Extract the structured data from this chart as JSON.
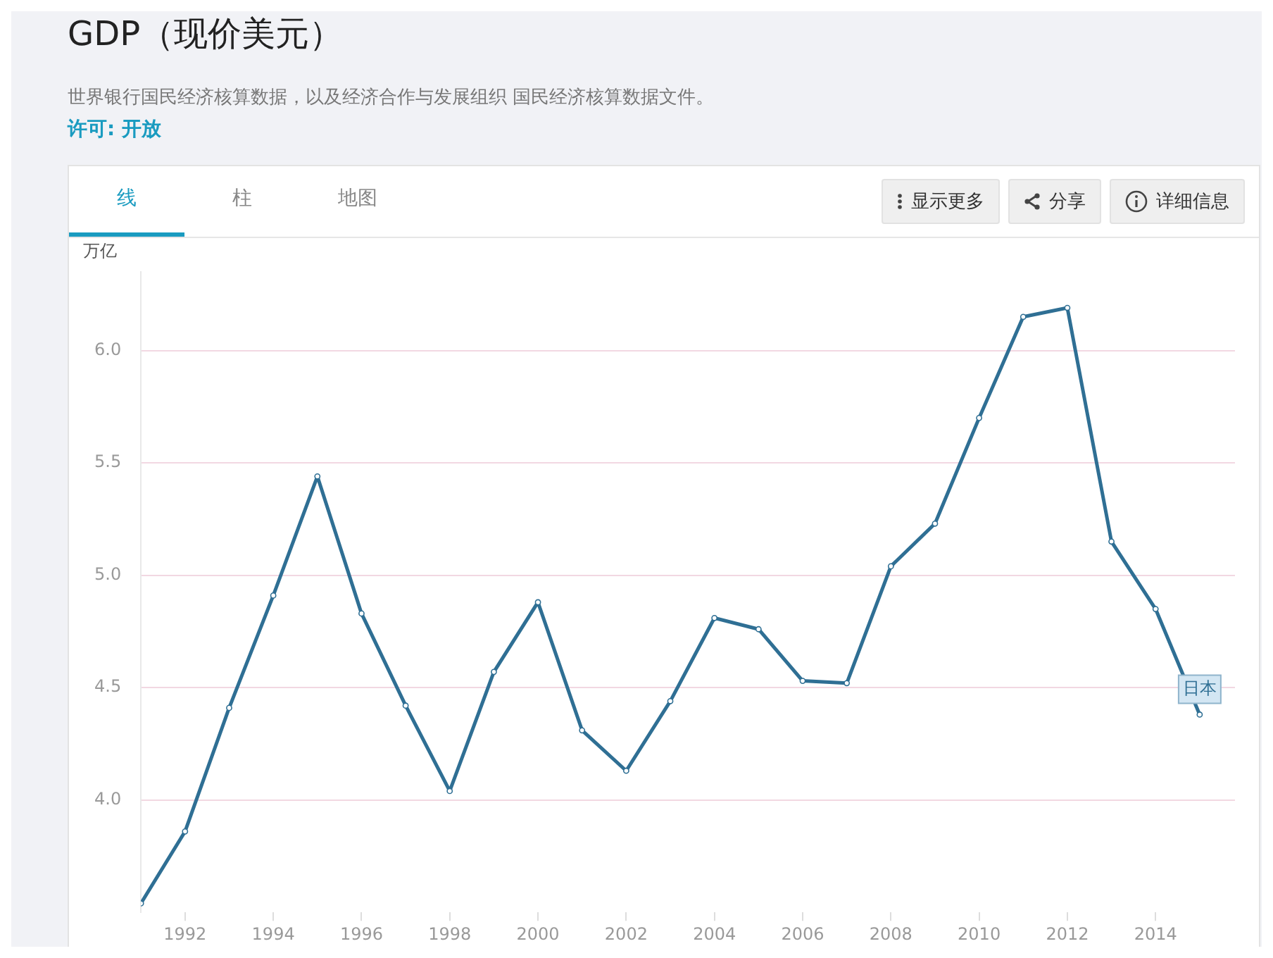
{
  "chart_data": {
    "type": "line",
    "title": "GDP（现价美元）",
    "subtitle": "世界银行国民经济核算数据，以及经济合作与发展组织 国民经济核算数据文件。",
    "ylabel": "万亿",
    "annotations": [
      "许可: 开放",
      "线",
      "柱",
      "地图",
      "显示更多",
      "分享",
      "详细信息"
    ],
    "x": [
      1991,
      1992,
      1993,
      1994,
      1995,
      1996,
      1997,
      1998,
      1999,
      2000,
      2001,
      2002,
      2003,
      2004,
      2005,
      2006,
      2007,
      2008,
      2009,
      2010,
      2011,
      2012,
      2013,
      2014,
      2015
    ],
    "series": [
      {
        "name": "日本",
        "color": "#2f6f94",
        "values": [
          3.54,
          3.86,
          4.41,
          4.91,
          5.44,
          4.83,
          4.42,
          4.04,
          4.57,
          4.88,
          4.31,
          4.13,
          4.44,
          4.81,
          4.76,
          4.53,
          4.52,
          5.04,
          5.23,
          5.7,
          6.15,
          6.19,
          5.15,
          4.85,
          4.38
        ]
      }
    ],
    "xlim": [
      1991,
      2015.8
    ],
    "xticks": [
      1992,
      1994,
      1996,
      1998,
      2000,
      2002,
      2004,
      2006,
      2008,
      2010,
      2012,
      2014
    ],
    "ylim": [
      3.5,
      6.35
    ],
    "yticks": [
      {
        "value": 4,
        "label": "4.0"
      },
      4.5,
      {
        "value": 5,
        "label": "5.0"
      },
      5.5,
      {
        "value": 6,
        "label": "6.0"
      }
    ],
    "grid": "y",
    "marker": "circle",
    "line_style": "solid",
    "legend": false
  }
}
